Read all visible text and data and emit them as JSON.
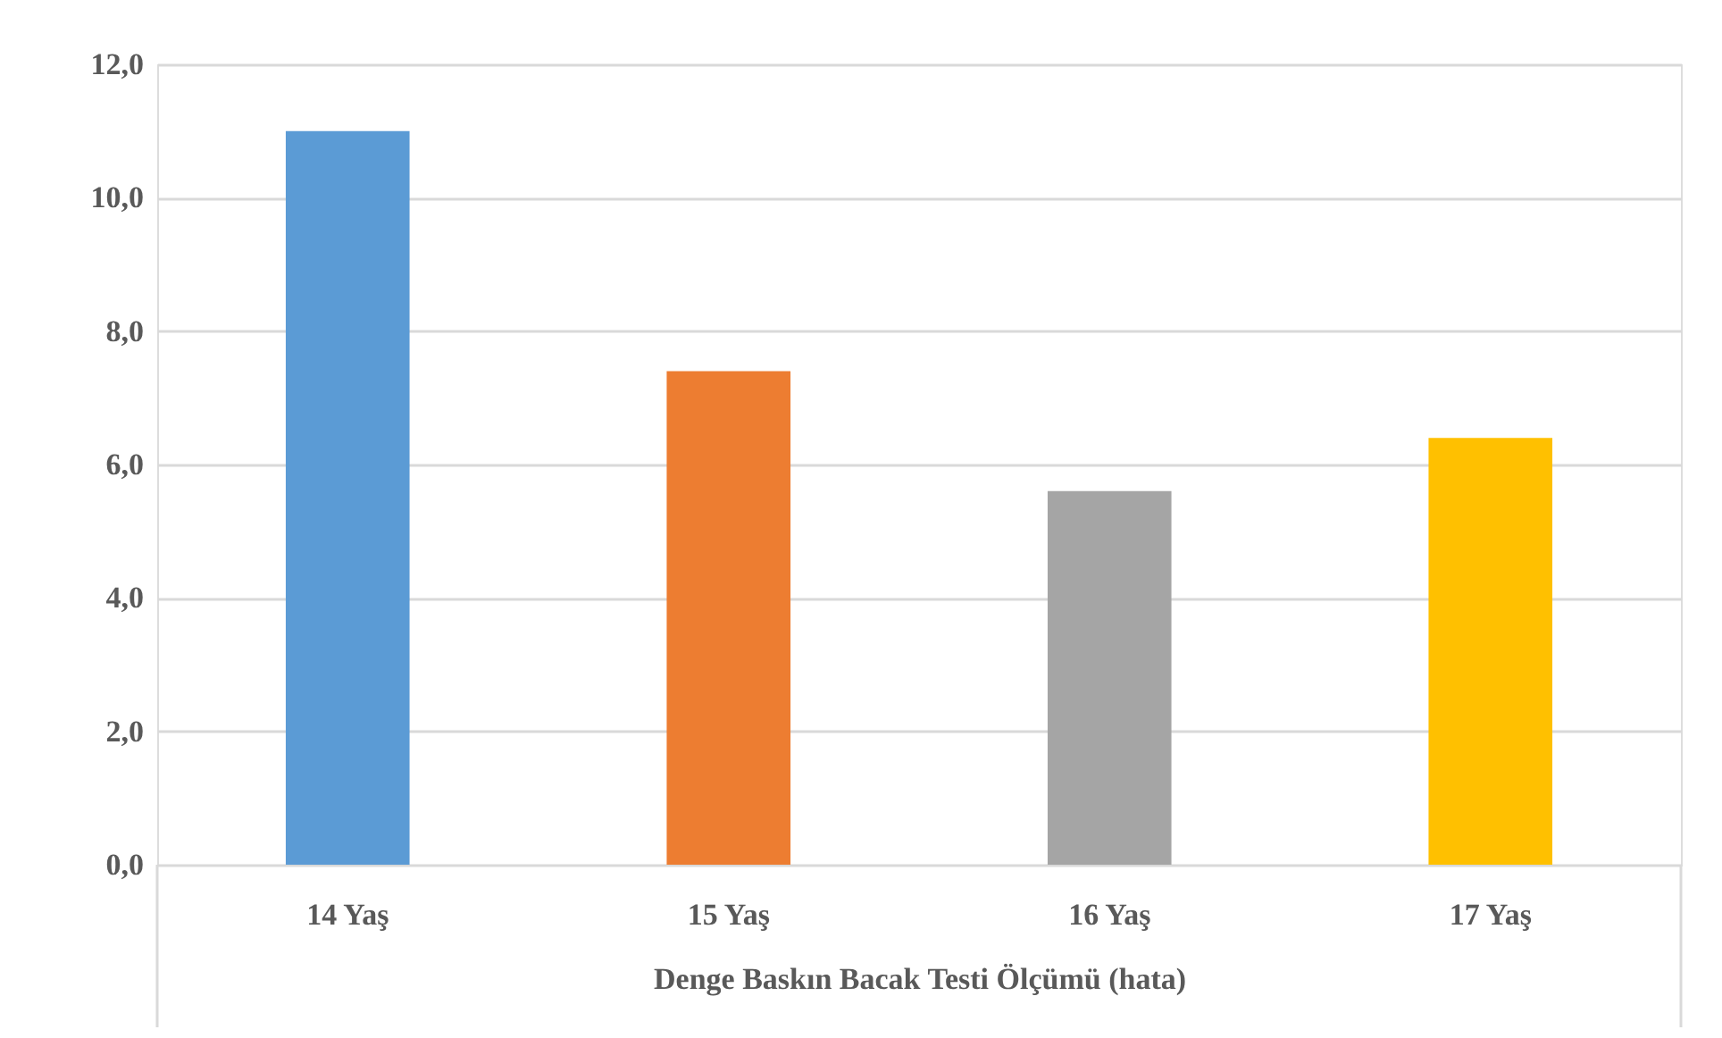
{
  "chart_data": {
    "type": "bar",
    "xlabel": "Denge Baskın Bacak Testi Ölçümü (hata)",
    "categories": [
      "14 Yaş",
      "15 Yaş",
      "16 Yaş",
      "17 Yaş"
    ],
    "values": [
      11.0,
      7.4,
      5.6,
      6.4
    ],
    "colors": [
      "#5b9bd5",
      "#ed7d31",
      "#a5a5a5",
      "#ffc000"
    ],
    "ylim": [
      0,
      12
    ],
    "yticks": [
      {
        "value": 0,
        "label": "0,0"
      },
      {
        "value": 2,
        "label": "2,0"
      },
      {
        "value": 4,
        "label": "4,0"
      },
      {
        "value": 6,
        "label": "6,0"
      },
      {
        "value": 8,
        "label": "8,0"
      },
      {
        "value": 10,
        "label": "10,0"
      },
      {
        "value": 12,
        "label": "12,0"
      }
    ],
    "grid": "y"
  }
}
